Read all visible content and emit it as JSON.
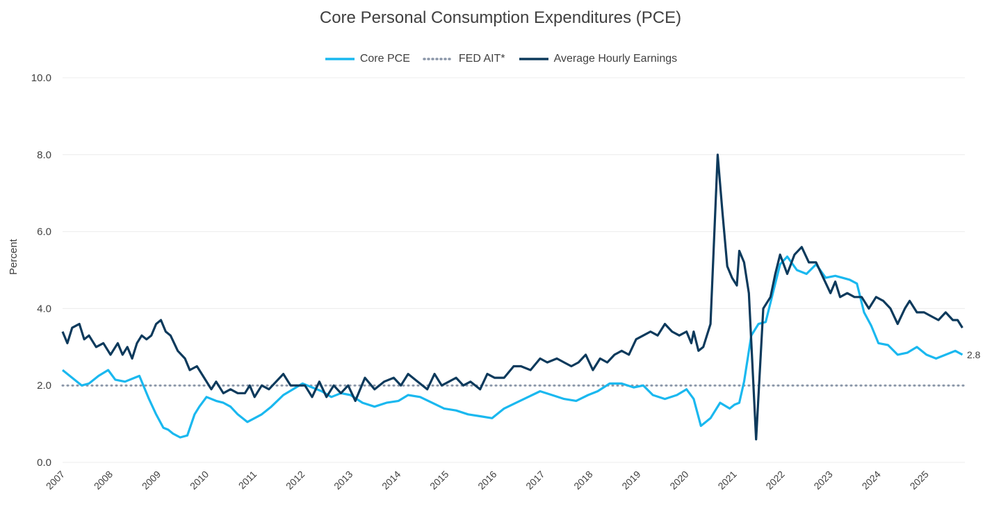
{
  "chart_data": {
    "type": "line",
    "title": "Core Personal Consumption Expenditures (PCE)",
    "ylabel": "Percent",
    "xlabel": "",
    "ylim": [
      0,
      10
    ],
    "xlim": [
      2007.0,
      2025.8
    ],
    "y_ticks": [
      "0.0",
      "2.0",
      "4.0",
      "6.0",
      "8.0",
      "10.0"
    ],
    "x_ticks": [
      "2007",
      "2008",
      "2009",
      "2010",
      "2011",
      "2012",
      "2013",
      "2014",
      "2015",
      "2016",
      "2017",
      "2018",
      "2019",
      "2020",
      "2021",
      "2022",
      "2023",
      "2024",
      "2025"
    ],
    "grid": true,
    "legend_position": "top-center",
    "end_label": "2.8",
    "colors": {
      "core_pce": "#1ab8ef",
      "fed_ait": "#8a96a8",
      "ahe": "#0d3a5c",
      "grid": "#ececec",
      "axis_text": "#404040"
    },
    "series": [
      {
        "name": "Core PCE",
        "style": "solid",
        "x": [
          2007.0,
          2007.2,
          2007.4,
          2007.55,
          2007.75,
          2007.95,
          2008.1,
          2008.3,
          2008.5,
          2008.6,
          2008.8,
          2008.95,
          2009.1,
          2009.2,
          2009.3,
          2009.45,
          2009.6,
          2009.75,
          2009.85,
          2010.0,
          2010.2,
          2010.35,
          2010.5,
          2010.65,
          2010.85,
          2011.0,
          2011.15,
          2011.35,
          2011.6,
          2011.8,
          2012.0,
          2012.2,
          2012.4,
          2012.6,
          2012.8,
          2013.0,
          2013.25,
          2013.5,
          2013.75,
          2014.0,
          2014.2,
          2014.45,
          2014.7,
          2014.95,
          2015.2,
          2015.45,
          2015.7,
          2015.95,
          2016.2,
          2016.45,
          2016.7,
          2016.95,
          2017.2,
          2017.45,
          2017.7,
          2017.95,
          2018.15,
          2018.4,
          2018.65,
          2018.9,
          2019.1,
          2019.3,
          2019.55,
          2019.8,
          2020.0,
          2020.15,
          2020.3,
          2020.5,
          2020.7,
          2020.9,
          2021.0,
          2021.1,
          2021.2,
          2021.35,
          2021.5,
          2021.65,
          2021.8,
          2021.95,
          2022.1,
          2022.3,
          2022.5,
          2022.7,
          2022.9,
          2023.1,
          2023.25,
          2023.4,
          2023.55,
          2023.7,
          2023.85,
          2024.0,
          2024.2,
          2024.4,
          2024.6,
          2024.8,
          2025.0,
          2025.2,
          2025.4,
          2025.6,
          2025.75
        ],
        "values": [
          2.4,
          2.2,
          2.0,
          2.05,
          2.25,
          2.4,
          2.15,
          2.1,
          2.2,
          2.25,
          1.65,
          1.25,
          0.9,
          0.85,
          0.75,
          0.65,
          0.7,
          1.25,
          1.45,
          1.7,
          1.6,
          1.55,
          1.45,
          1.25,
          1.05,
          1.15,
          1.25,
          1.45,
          1.75,
          1.9,
          2.05,
          1.95,
          1.85,
          1.7,
          1.8,
          1.75,
          1.55,
          1.45,
          1.55,
          1.6,
          1.75,
          1.7,
          1.55,
          1.4,
          1.35,
          1.25,
          1.2,
          1.15,
          1.4,
          1.55,
          1.7,
          1.85,
          1.75,
          1.65,
          1.6,
          1.75,
          1.85,
          2.05,
          2.05,
          1.95,
          2.0,
          1.75,
          1.65,
          1.75,
          1.9,
          1.65,
          0.95,
          1.15,
          1.55,
          1.4,
          1.5,
          1.55,
          2.1,
          3.3,
          3.6,
          3.65,
          4.4,
          5.15,
          5.35,
          5.0,
          4.9,
          5.15,
          4.8,
          4.85,
          4.8,
          4.75,
          4.65,
          3.9,
          3.55,
          3.1,
          3.05,
          2.8,
          2.85,
          3.0,
          2.8,
          2.7,
          2.8,
          2.9,
          2.8
        ]
      },
      {
        "name": "FED AIT*",
        "style": "dotted",
        "x": [
          2007.0,
          2025.8
        ],
        "values": [
          2.0,
          2.0
        ]
      },
      {
        "name": "Average Hourly Earnings",
        "style": "solid",
        "x": [
          2007.0,
          2007.1,
          2007.2,
          2007.35,
          2007.45,
          2007.55,
          2007.7,
          2007.85,
          2008.0,
          2008.15,
          2008.25,
          2008.35,
          2008.45,
          2008.55,
          2008.65,
          2008.75,
          2008.85,
          2008.95,
          2009.05,
          2009.15,
          2009.25,
          2009.4,
          2009.55,
          2009.65,
          2009.8,
          2009.95,
          2010.1,
          2010.2,
          2010.35,
          2010.5,
          2010.65,
          2010.8,
          2010.9,
          2011.0,
          2011.15,
          2011.3,
          2011.45,
          2011.6,
          2011.75,
          2011.9,
          2012.05,
          2012.2,
          2012.35,
          2012.5,
          2012.65,
          2012.8,
          2012.95,
          2013.1,
          2013.3,
          2013.5,
          2013.7,
          2013.9,
          2014.05,
          2014.2,
          2014.4,
          2014.6,
          2014.75,
          2014.9,
          2015.05,
          2015.2,
          2015.35,
          2015.5,
          2015.7,
          2015.85,
          2016.0,
          2016.2,
          2016.4,
          2016.55,
          2016.75,
          2016.95,
          2017.1,
          2017.3,
          2017.45,
          2017.6,
          2017.75,
          2017.9,
          2018.05,
          2018.2,
          2018.35,
          2018.5,
          2018.65,
          2018.8,
          2018.95,
          2019.1,
          2019.25,
          2019.4,
          2019.55,
          2019.7,
          2019.85,
          2020.0,
          2020.1,
          2020.15,
          2020.25,
          2020.35,
          2020.5,
          2020.65,
          2020.75,
          2020.85,
          2020.95,
          2021.05,
          2021.1,
          2021.2,
          2021.3,
          2021.45,
          2021.6,
          2021.75,
          2021.85,
          2021.95,
          2022.1,
          2022.25,
          2022.4,
          2022.55,
          2022.7,
          2022.85,
          2023.0,
          2023.1,
          2023.2,
          2023.35,
          2023.5,
          2023.65,
          2023.8,
          2023.95,
          2024.1,
          2024.25,
          2024.4,
          2024.55,
          2024.65,
          2024.8,
          2024.95,
          2025.1,
          2025.25,
          2025.4,
          2025.55,
          2025.65,
          2025.75
        ],
        "values": [
          3.4,
          3.1,
          3.5,
          3.6,
          3.2,
          3.3,
          3.0,
          3.1,
          2.8,
          3.1,
          2.8,
          3.0,
          2.7,
          3.1,
          3.3,
          3.2,
          3.3,
          3.6,
          3.7,
          3.4,
          3.3,
          2.9,
          2.7,
          2.4,
          2.5,
          2.2,
          1.9,
          2.1,
          1.8,
          1.9,
          1.8,
          1.8,
          2.0,
          1.7,
          2.0,
          1.9,
          2.1,
          2.3,
          2.0,
          2.0,
          2.0,
          1.7,
          2.1,
          1.7,
          2.0,
          1.8,
          2.0,
          1.6,
          2.2,
          1.9,
          2.1,
          2.2,
          2.0,
          2.3,
          2.1,
          1.9,
          2.3,
          2.0,
          2.1,
          2.2,
          2.0,
          2.1,
          1.9,
          2.3,
          2.2,
          2.2,
          2.5,
          2.5,
          2.4,
          2.7,
          2.6,
          2.7,
          2.6,
          2.5,
          2.6,
          2.8,
          2.4,
          2.7,
          2.6,
          2.8,
          2.9,
          2.8,
          3.2,
          3.3,
          3.4,
          3.3,
          3.6,
          3.4,
          3.3,
          3.4,
          3.1,
          3.4,
          2.9,
          3.0,
          3.6,
          8.0,
          6.5,
          5.1,
          4.8,
          4.6,
          5.5,
          5.2,
          4.4,
          0.6,
          4.0,
          4.3,
          4.9,
          5.4,
          4.9,
          5.4,
          5.6,
          5.2,
          5.2,
          4.8,
          4.4,
          4.7,
          4.3,
          4.4,
          4.3,
          4.3,
          4.0,
          4.3,
          4.2,
          4.0,
          3.6,
          4.0,
          4.2,
          3.9,
          3.9,
          3.8,
          3.7,
          3.9,
          3.7,
          3.7,
          3.5
        ]
      }
    ]
  }
}
